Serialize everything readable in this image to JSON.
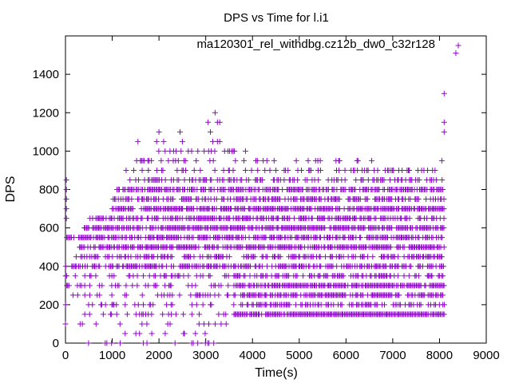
{
  "chart_data": {
    "type": "scatter",
    "title": "DPS vs Time for l.i1",
    "xlabel": "Time(s)",
    "ylabel": "DPS",
    "xlim": [
      0,
      9000
    ],
    "ylim": [
      0,
      1600
    ],
    "xticks": [
      0,
      1000,
      2000,
      3000,
      4000,
      5000,
      6000,
      7000,
      8000,
      9000
    ],
    "yticks": [
      0,
      200,
      400,
      600,
      800,
      1000,
      1200,
      1400
    ],
    "xtick_labels": [
      "0",
      "1000",
      "2000",
      "3000",
      "4000",
      "5000",
      "6000",
      "7000",
      "8000",
      "9000"
    ],
    "ytick_labels": [
      "0",
      "200",
      "400",
      "600",
      "800",
      "1000",
      "1200",
      "1400"
    ],
    "legend": {
      "position": "top-right",
      "label": "ma120301_rel_withdbg.cz12b_dw0_c32r128",
      "marker": "+"
    },
    "series_color": "#9400d3",
    "dense_bands": [
      {
        "y": 150,
        "x_start": 3600,
        "x_end": 8100,
        "density": 0.95
      },
      {
        "y": 200,
        "x_start": 3600,
        "x_end": 8100,
        "density": 0.55
      },
      {
        "y": 250,
        "x_start": 3600,
        "x_end": 8100,
        "density": 0.7
      },
      {
        "y": 300,
        "x_start": 3600,
        "x_end": 8100,
        "density": 0.85
      },
      {
        "y": 350,
        "x_start": 3500,
        "x_end": 8100,
        "density": 0.55
      },
      {
        "y": 400,
        "x_start": 0,
        "x_end": 8100,
        "density": 0.6
      },
      {
        "y": 450,
        "x_start": 200,
        "x_end": 8100,
        "density": 0.5
      },
      {
        "y": 500,
        "x_start": 300,
        "x_end": 8100,
        "density": 0.75
      },
      {
        "y": 550,
        "x_start": 0,
        "x_end": 8100,
        "density": 0.7
      },
      {
        "y": 600,
        "x_start": 400,
        "x_end": 8100,
        "density": 0.85
      },
      {
        "y": 650,
        "x_start": 500,
        "x_end": 8100,
        "density": 0.6
      },
      {
        "y": 700,
        "x_start": 1000,
        "x_end": 8100,
        "density": 0.8
      },
      {
        "y": 750,
        "x_start": 1000,
        "x_end": 8100,
        "density": 0.6
      },
      {
        "y": 800,
        "x_start": 1100,
        "x_end": 8100,
        "density": 0.7
      },
      {
        "y": 850,
        "x_start": 1300,
        "x_end": 8100,
        "density": 0.45
      },
      {
        "y": 900,
        "x_start": 1300,
        "x_end": 8100,
        "density": 0.25
      },
      {
        "y": 950,
        "x_start": 1500,
        "x_end": 6300,
        "density": 0.2
      },
      {
        "y": 1000,
        "x_start": 2000,
        "x_end": 3700,
        "density": 0.3
      }
    ],
    "sparse_bands": [
      {
        "y": 50,
        "x_start": 0,
        "x_end": 3500,
        "density": 0.1
      },
      {
        "y": 100,
        "x_start": 0,
        "x_end": 3500,
        "density": 0.12
      },
      {
        "y": 150,
        "x_start": 0,
        "x_end": 3500,
        "density": 0.15
      },
      {
        "y": 200,
        "x_start": 0,
        "x_end": 3500,
        "density": 0.2
      },
      {
        "y": 250,
        "x_start": 0,
        "x_end": 3500,
        "density": 0.2
      },
      {
        "y": 300,
        "x_start": 0,
        "x_end": 3500,
        "density": 0.25
      },
      {
        "y": 350,
        "x_start": 0,
        "x_end": 3500,
        "density": 0.3
      },
      {
        "y": 0,
        "x_start": 0,
        "x_end": 3200,
        "density": 0.05
      }
    ],
    "outliers": [
      {
        "x": 20,
        "y": 850
      },
      {
        "x": 20,
        "y": 800
      },
      {
        "x": 20,
        "y": 750
      },
      {
        "x": 20,
        "y": 700
      },
      {
        "x": 20,
        "y": 650
      },
      {
        "x": 1550,
        "y": 1050
      },
      {
        "x": 1950,
        "y": 1050
      },
      {
        "x": 2000,
        "y": 1100
      },
      {
        "x": 2100,
        "y": 1050
      },
      {
        "x": 2450,
        "y": 1100
      },
      {
        "x": 2500,
        "y": 1050
      },
      {
        "x": 3050,
        "y": 1150
      },
      {
        "x": 3100,
        "y": 1100
      },
      {
        "x": 3150,
        "y": 1050
      },
      {
        "x": 3200,
        "y": 1200
      },
      {
        "x": 3250,
        "y": 1150
      },
      {
        "x": 3300,
        "y": 1150
      },
      {
        "x": 3250,
        "y": 1050
      },
      {
        "x": 3300,
        "y": 1050
      },
      {
        "x": 3850,
        "y": 1000
      },
      {
        "x": 5450,
        "y": 950
      },
      {
        "x": 6550,
        "y": 950
      },
      {
        "x": 8050,
        "y": 950
      },
      {
        "x": 8100,
        "y": 1300
      },
      {
        "x": 8100,
        "y": 1150
      },
      {
        "x": 8100,
        "y": 1100
      },
      {
        "x": 850,
        "y": 0
      },
      {
        "x": 8350,
        "y": 1510
      }
    ]
  }
}
